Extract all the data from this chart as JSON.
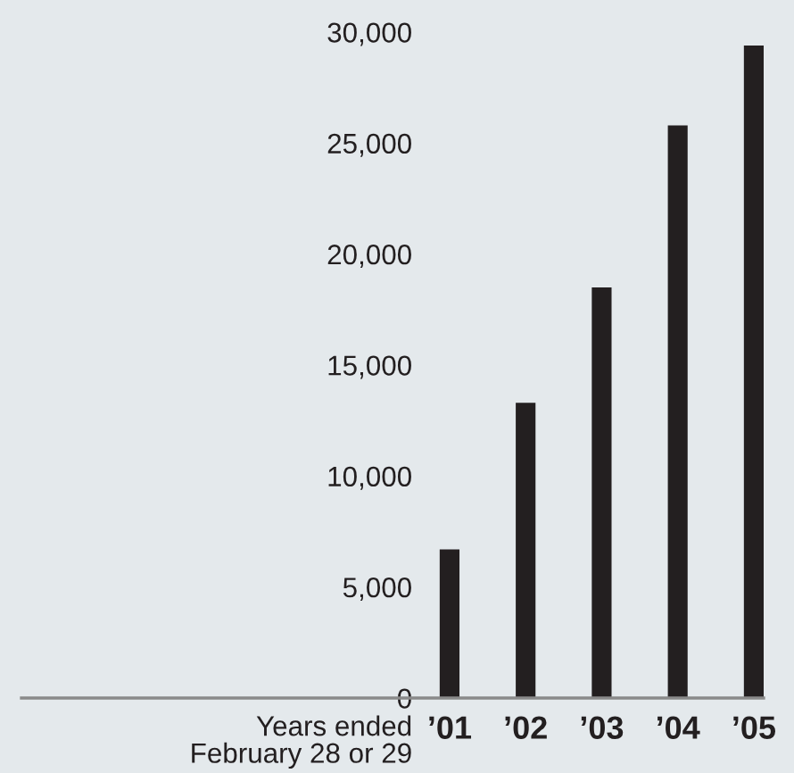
{
  "chart_data": {
    "type": "bar",
    "categories": [
      "’01",
      "’02",
      "’03",
      "’04",
      "’05"
    ],
    "values": [
      6700,
      13300,
      18500,
      25800,
      29400
    ],
    "color": "#231f20",
    "xlabel": "Years ended\nFebruary 28 or 29",
    "ylim": [
      0,
      30000
    ],
    "yticks": [
      0,
      {
        "value": 5000,
        "label": "5,000"
      },
      {
        "value": 10000,
        "label": "10,000"
      },
      {
        "value": 15000,
        "label": "15,000"
      },
      {
        "value": 20000,
        "label": "20,000"
      },
      {
        "value": 25000,
        "label": "25,000"
      },
      {
        "value": 30000,
        "label": "30,000"
      }
    ]
  }
}
